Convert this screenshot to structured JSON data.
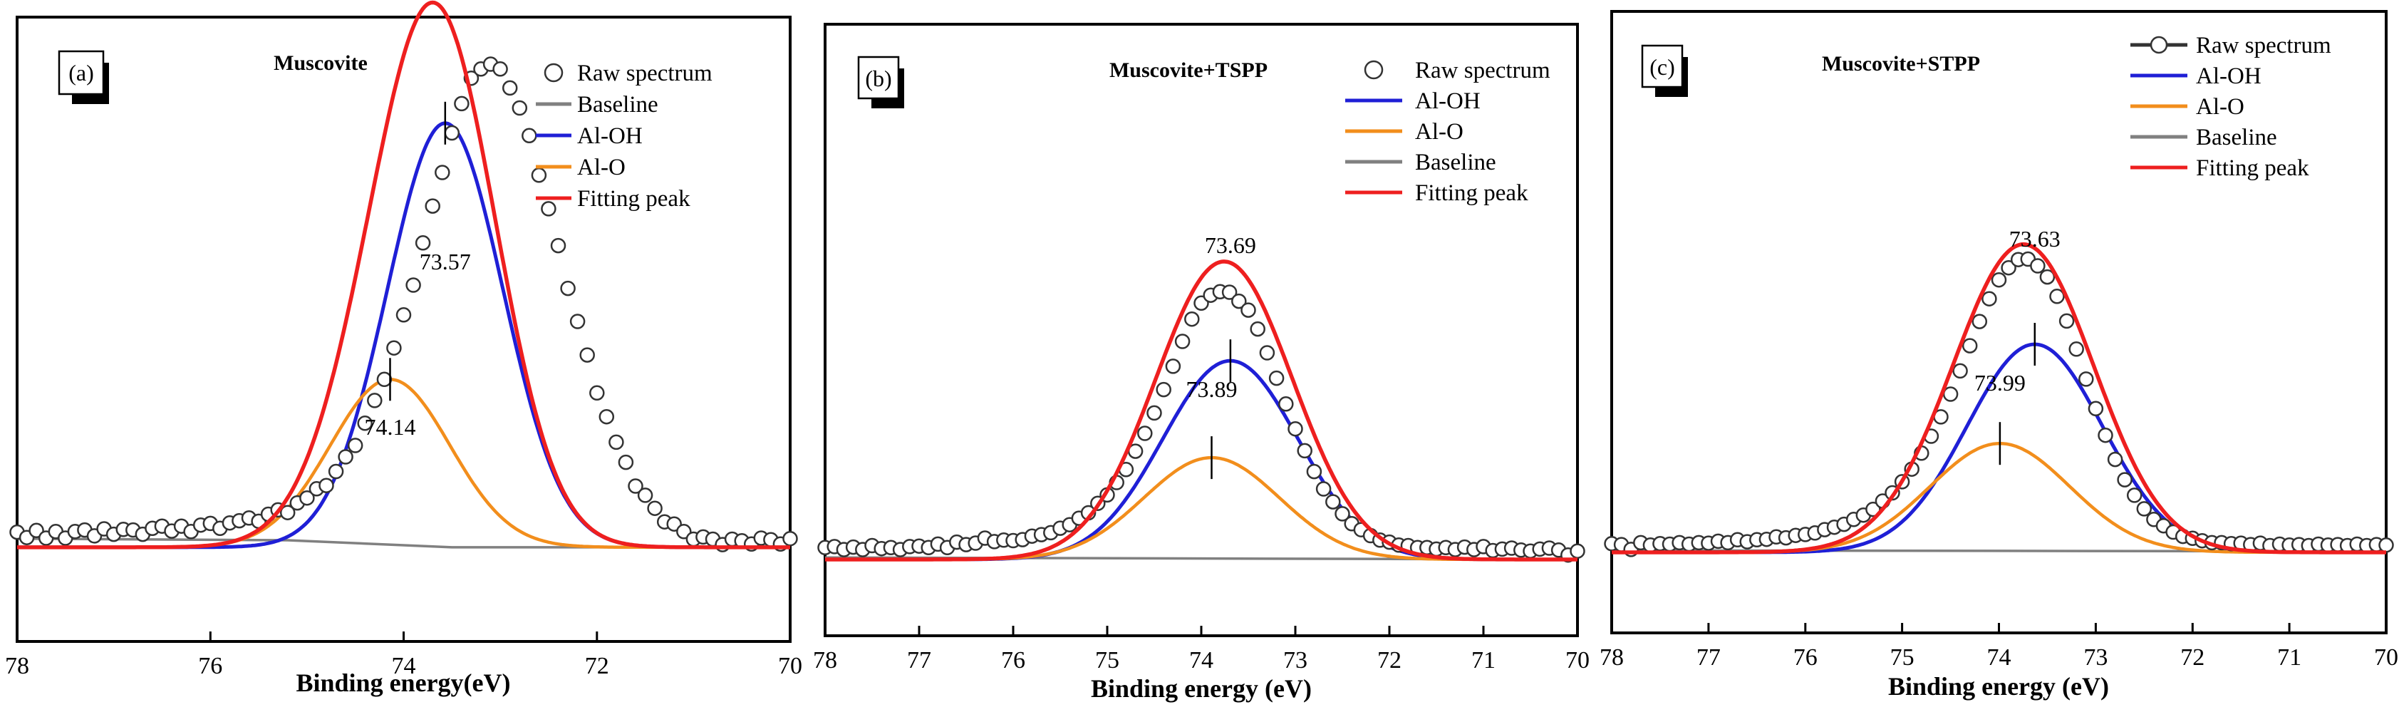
{
  "figure": {
    "panels": [
      {
        "tag": "(a)",
        "title": "Muscovite",
        "xlabel": "Binding energy(eV)",
        "xlim": [
          78,
          70
        ],
        "xticks": [
          78,
          76,
          74,
          72,
          70
        ],
        "legend": [
          {
            "key": "raw",
            "label": "Raw spectrum",
            "style": "marker"
          },
          {
            "key": "baseline",
            "label": "Baseline",
            "style": "line"
          },
          {
            "key": "aloh",
            "label": "Al-OH",
            "style": "line"
          },
          {
            "key": "alo",
            "label": "Al-O",
            "style": "line"
          },
          {
            "key": "fit",
            "label": "Fitting peak",
            "style": "line"
          }
        ],
        "annotations": [
          {
            "label": "73.57",
            "peak": "aloh",
            "x": 73.57
          },
          {
            "label": "74.14",
            "peak": "alo",
            "x": 74.14
          }
        ]
      },
      {
        "tag": "(b)",
        "title": "Muscovite+TSPP",
        "xlabel": "Binding energy (eV)",
        "xlim": [
          78,
          70
        ],
        "xticks": [
          78,
          77,
          76,
          75,
          74,
          73,
          72,
          71,
          70
        ],
        "legend": [
          {
            "key": "raw",
            "label": "Raw spectrum",
            "style": "marker"
          },
          {
            "key": "aloh",
            "label": "Al-OH",
            "style": "line"
          },
          {
            "key": "alo",
            "label": "Al-O",
            "style": "line"
          },
          {
            "key": "baseline",
            "label": "Baseline",
            "style": "line"
          },
          {
            "key": "fit",
            "label": "Fitting peak",
            "style": "line"
          }
        ],
        "annotations": [
          {
            "label": "73.69",
            "peak": "aloh",
            "x": 73.69
          },
          {
            "label": "73.89",
            "peak": "alo",
            "x": 73.89
          }
        ]
      },
      {
        "tag": "(c)",
        "title": "Muscovite+STPP",
        "xlabel": "Binding energy (eV)",
        "xlim": [
          78,
          70
        ],
        "xticks": [
          78,
          77,
          76,
          75,
          74,
          73,
          72,
          71,
          70
        ],
        "legend": [
          {
            "key": "raw",
            "label": "Raw spectrum",
            "style": "line-marker"
          },
          {
            "key": "aloh",
            "label": "Al-OH",
            "style": "line"
          },
          {
            "key": "alo",
            "label": "Al-O",
            "style": "line"
          },
          {
            "key": "baseline",
            "label": "Baseline",
            "style": "line"
          },
          {
            "key": "fit",
            "label": "Fitting peak",
            "style": "line"
          }
        ],
        "annotations": [
          {
            "label": "73.63",
            "peak": "aloh",
            "x": 73.63
          },
          {
            "label": "73.99",
            "peak": "alo",
            "x": 73.99
          }
        ]
      }
    ]
  },
  "chart_data": [
    {
      "type": "line",
      "title": "Muscovite",
      "xlabel": "Binding energy(eV)",
      "ylabel": "",
      "xlim": [
        78,
        70
      ],
      "ylim": [
        0,
        1
      ],
      "x_direction": "reversed",
      "x_start": 78.0,
      "x_end": 70.0,
      "x_step": 0.1,
      "colors": {
        "raw": "#333333",
        "baseline": "#808080",
        "aloh": "#1f1fd6",
        "alo": "#f28e1c",
        "fit": "#ee1f1f"
      },
      "series": [
        {
          "name": "Raw spectrum",
          "key": "raw",
          "kind": "markers",
          "x_step": 0.1,
          "values": [
            0.134,
            0.134,
            0.135,
            0.135,
            0.136,
            0.136,
            0.137,
            0.138,
            0.138,
            0.139,
            0.14,
            0.14,
            0.141,
            0.142,
            0.143,
            0.144,
            0.145,
            0.146,
            0.147,
            0.149,
            0.15,
            0.152,
            0.154,
            0.157,
            0.16,
            0.164,
            0.168,
            0.174,
            0.181,
            0.19,
            0.2,
            0.214,
            0.23,
            0.25,
            0.274,
            0.303,
            0.337,
            0.377,
            0.424,
            0.477,
            0.536,
            0.6,
            0.668,
            0.739,
            0.809,
            0.873,
            0.929,
            0.972,
            0.998,
            1.0,
            0.99,
            0.962,
            0.92,
            0.866,
            0.803,
            0.735,
            0.664,
            0.593,
            0.525,
            0.461,
            0.402,
            0.35,
            0.304,
            0.265,
            0.231,
            0.203,
            0.181,
            0.163,
            0.149,
            0.139,
            0.132,
            0.127,
            0.124,
            0.123,
            0.122,
            0.122,
            0.122,
            0.123,
            0.123,
            0.123,
            0.124
          ],
          "noise": [
            0.006,
            -0.004,
            0.008,
            -0.006,
            0.005,
            -0.007,
            0.004,
            0.006,
            -0.005,
            0.007,
            -0.004,
            0.005,
            0.003,
            -0.006,
            0.004,
            0.007,
            -0.003,
            0.005,
            -0.006,
            0.004,
            0.006,
            -0.005,
            0.003,
            0.004,
            0.006,
            -0.004,
            0.005,
            0.007,
            -0.005,
            0.004,
            0.003,
            0.006,
            -0.004,
            0.002,
            0.005,
            -0.003,
            0.004,
            0.006,
            -0.002,
            0.003,
            0.005,
            -0.004,
            0.006,
            0.003,
            -0.005,
            0.004,
            0.002,
            0.006,
            -0.003,
            0.004,
            0.005,
            -0.002,
            0.003,
            0.006,
            -0.004,
            0.002,
            0.005,
            -0.003,
            0.004,
            0.006,
            -0.005,
            0.003,
            0.002,
            0.004,
            -0.006,
            0.005,
            0.003,
            -0.004,
            0.006,
            0.002,
            -0.005,
            0.004,
            0.003,
            -0.006,
            0.005,
            0.002,
            -0.004,
            0.006,
            0.003,
            -0.005,
            0.004
          ]
        },
        {
          "name": "Baseline",
          "key": "baseline",
          "kind": "line",
          "points": [
            [
              78.0,
              0.128
            ],
            [
              75.2,
              0.125
            ],
            [
              73.5,
              0.112
            ],
            [
              70.0,
              0.112
            ]
          ]
        },
        {
          "name": "Al-OH",
          "key": "aloh",
          "kind": "gaussian",
          "center": 73.57,
          "height": 0.783,
          "sigma": 0.6,
          "offset": 0.112
        },
        {
          "name": "Al-O",
          "key": "alo",
          "kind": "gaussian",
          "center": 74.14,
          "height": 0.31,
          "sigma": 0.62,
          "offset": 0.112
        },
        {
          "name": "Fitting peak",
          "key": "fit",
          "kind": "sum",
          "offset": 0.112
        }
      ]
    },
    {
      "type": "line",
      "title": "Muscovite+TSPP",
      "xlabel": "Binding energy (eV)",
      "ylabel": "",
      "xlim": [
        78,
        70
      ],
      "ylim": [
        0,
        1
      ],
      "x_direction": "reversed",
      "colors": {
        "raw": "#333333",
        "baseline": "#808080",
        "aloh": "#1f1fd6",
        "alo": "#f28e1c",
        "fit": "#ee1f1f"
      },
      "series": [
        {
          "name": "Raw spectrum",
          "key": "raw",
          "kind": "markers",
          "x_step": 0.1,
          "values": [
            0.014,
            0.014,
            0.014,
            0.014,
            0.015,
            0.015,
            0.015,
            0.016,
            0.016,
            0.017,
            0.017,
            0.018,
            0.019,
            0.02,
            0.021,
            0.022,
            0.023,
            0.025,
            0.027,
            0.029,
            0.032,
            0.035,
            0.039,
            0.044,
            0.05,
            0.057,
            0.066,
            0.077,
            0.09,
            0.106,
            0.125,
            0.149,
            0.177,
            0.21,
            0.248,
            0.29,
            0.336,
            0.382,
            0.429,
            0.47,
            0.5,
            0.52,
            0.525,
            0.52,
            0.506,
            0.482,
            0.448,
            0.404,
            0.355,
            0.305,
            0.257,
            0.212,
            0.172,
            0.138,
            0.11,
            0.087,
            0.068,
            0.054,
            0.043,
            0.035,
            0.029,
            0.024,
            0.021,
            0.018,
            0.016,
            0.015,
            0.014,
            0.013,
            0.013,
            0.012,
            0.012,
            0.012,
            0.011,
            0.011,
            0.011,
            0.011,
            0.011,
            0.011,
            0.011,
            0.011,
            0.011
          ],
          "noise": [
            0.01,
            0.012,
            0.006,
            0.011,
            0.005,
            0.013,
            0.007,
            0.008,
            0.004,
            0.009,
            0.01,
            0.006,
            0.012,
            0.004,
            0.014,
            0.008,
            0.01,
            0.018,
            0.009,
            0.01,
            0.006,
            0.005,
            0.008,
            0.006,
            0.004,
            0.006,
            0.004,
            0.006,
            0.004,
            0.007,
            0.005,
            0.006,
            0.004,
            0.008,
            0.006,
            0.005,
            0.006,
            0.007,
            0.01,
            0.014,
            0.016,
            0.012,
            0.014,
            0.018,
            0.014,
            0.02,
            0.016,
            0.012,
            0.01,
            0.008,
            0.006,
            0.007,
            0.005,
            0.004,
            0.006,
            0.005,
            0.004,
            0.006,
            0.005,
            0.004,
            0.006,
            0.005,
            0.007,
            0.006,
            0.008,
            0.006,
            0.01,
            0.007,
            0.012,
            0.008,
            0.014,
            0.006,
            0.01,
            0.012,
            0.008,
            0.006,
            0.01,
            0.012,
            0.008,
            -0.002,
            0.006
          ]
        },
        {
          "name": "Baseline",
          "key": "baseline",
          "kind": "line",
          "points": [
            [
              78.0,
              0.004
            ],
            [
              70.0,
              0.0
            ]
          ]
        },
        {
          "name": "Al-OH",
          "key": "aloh",
          "kind": "gaussian",
          "center": 73.69,
          "height": 0.4,
          "sigma": 0.72,
          "offset": 0.0
        },
        {
          "name": "Al-O",
          "key": "alo",
          "kind": "gaussian",
          "center": 73.89,
          "height": 0.205,
          "sigma": 0.72,
          "offset": 0.0
        },
        {
          "name": "Fitting peak",
          "key": "fit",
          "kind": "sum",
          "offset": 0.0
        }
      ]
    },
    {
      "type": "line",
      "title": "Muscovite+STPP",
      "xlabel": "Binding energy (eV)",
      "ylabel": "",
      "xlim": [
        78,
        70
      ],
      "ylim": [
        0,
        1
      ],
      "x_direction": "reversed",
      "colors": {
        "raw": "#333333",
        "baseline": "#808080",
        "aloh": "#1f1fd6",
        "alo": "#f28e1c",
        "fit": "#ee1f1f"
      },
      "series": [
        {
          "name": "Raw spectrum",
          "key": "raw",
          "kind": "markers",
          "x_step": 0.1,
          "values": [
            0.01,
            0.01,
            0.01,
            0.011,
            0.011,
            0.011,
            0.012,
            0.012,
            0.013,
            0.013,
            0.014,
            0.015,
            0.016,
            0.017,
            0.018,
            0.02,
            0.022,
            0.024,
            0.026,
            0.029,
            0.032,
            0.036,
            0.041,
            0.047,
            0.054,
            0.062,
            0.072,
            0.085,
            0.1,
            0.119,
            0.141,
            0.168,
            0.199,
            0.235,
            0.276,
            0.321,
            0.37,
            0.42,
            0.469,
            0.514,
            0.551,
            0.578,
            0.593,
            0.594,
            0.582,
            0.557,
            0.519,
            0.47,
            0.413,
            0.352,
            0.292,
            0.236,
            0.187,
            0.146,
            0.112,
            0.085,
            0.064,
            0.049,
            0.037,
            0.029,
            0.023,
            0.019,
            0.016,
            0.014,
            0.013,
            0.012,
            0.011,
            0.011,
            0.01,
            0.01,
            0.01,
            0.01,
            0.01,
            0.01,
            0.01,
            0.01,
            0.01,
            0.01,
            0.01,
            0.01,
            0.01
          ],
          "noise": [
            0.008,
            0.006,
            -0.004,
            0.009,
            0.004,
            0.007,
            0.005,
            0.008,
            0.004,
            0.007,
            0.005,
            0.008,
            0.004,
            0.009,
            0.004,
            0.006,
            0.005,
            0.008,
            0.004,
            0.006,
            0.005,
            0.004,
            0.006,
            0.005,
            0.004,
            0.006,
            0.005,
            0.004,
            0.006,
            0.004,
            0.005,
            0.004,
            0.006,
            0.005,
            0.004,
            0.006,
            0.005,
            0.007,
            0.008,
            0.01,
            0.012,
            0.01,
            0.012,
            0.012,
            0.01,
            0.012,
            0.01,
            0.008,
            0.007,
            0.006,
            0.005,
            0.006,
            0.005,
            0.004,
            0.006,
            0.005,
            0.004,
            0.006,
            0.005,
            0.004,
            0.006,
            0.005,
            0.004,
            0.006,
            0.005,
            0.007,
            0.005,
            0.008,
            0.004,
            0.007,
            0.005,
            0.006,
            0.004,
            0.007,
            0.005,
            0.006,
            0.004,
            0.007,
            0.004,
            0.006,
            0.005
          ]
        },
        {
          "name": "Baseline",
          "key": "baseline",
          "kind": "line",
          "points": [
            [
              78.0,
              0.004
            ],
            [
              70.0,
              0.002
            ]
          ]
        },
        {
          "name": "Al-OH",
          "key": "aloh",
          "kind": "gaussian",
          "center": 73.63,
          "height": 0.43,
          "sigma": 0.7,
          "offset": 0.0
        },
        {
          "name": "Al-O",
          "key": "alo",
          "kind": "gaussian",
          "center": 73.99,
          "height": 0.225,
          "sigma": 0.72,
          "offset": 0.0
        },
        {
          "name": "Fitting peak",
          "key": "fit",
          "kind": "sum",
          "offset": 0.0
        }
      ]
    }
  ]
}
